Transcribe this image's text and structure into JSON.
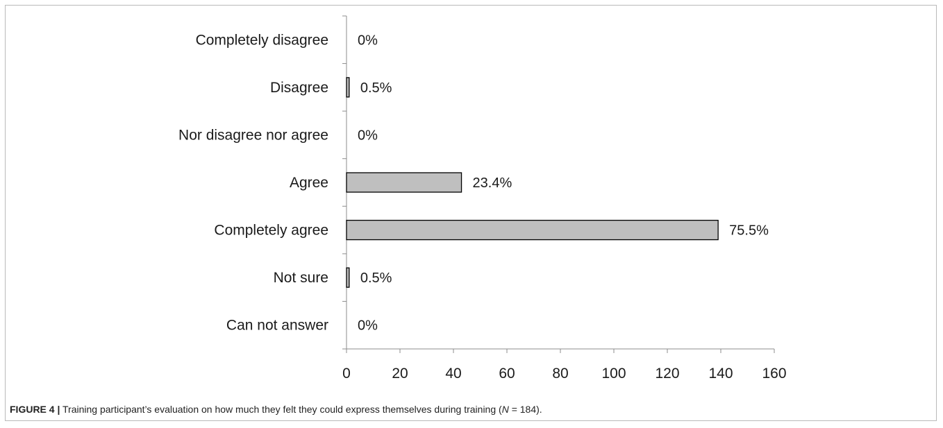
{
  "chart_data": {
    "type": "bar",
    "orientation": "horizontal",
    "categories": [
      "Completely disagree",
      "Disagree",
      "Nor disagree nor agree",
      "Agree",
      "Completely agree",
      "Not sure",
      "Can not answer"
    ],
    "values": [
      0,
      1,
      0,
      43,
      139,
      1,
      0
    ],
    "data_labels": [
      "0%",
      "0.5%",
      "0%",
      "23.4%",
      "75.5%",
      "0.5%",
      "0%"
    ],
    "xlim": [
      0,
      160
    ],
    "xticks": [
      0,
      20,
      40,
      60,
      80,
      100,
      120,
      140,
      160
    ],
    "bar_color": "#bfbfbf",
    "bar_edge_color": "#000000",
    "grid": false,
    "legend": "none"
  },
  "caption": {
    "figure_label": "FIGURE 4 |",
    "text_before_n": " Training participant’s evaluation on how much they felt they could express themselves during training (",
    "n_symbol": "N",
    "text_after_n": " = 184)."
  }
}
